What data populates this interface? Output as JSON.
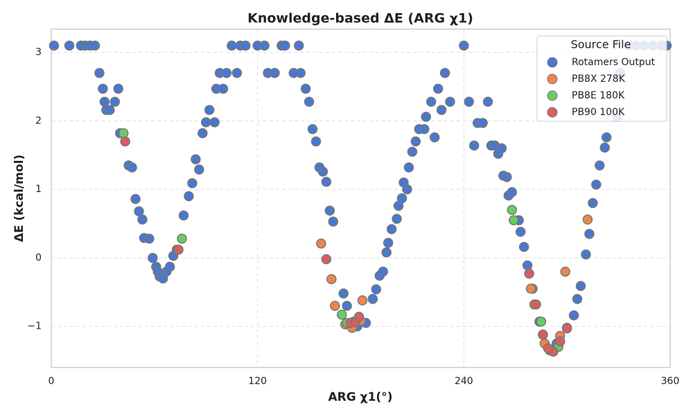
{
  "chart_data": {
    "type": "scatter",
    "title": "Knowledge-based ΔE (ARG χ1)",
    "x_label": "ARG χ1(°)",
    "y_label": "ΔE (kcal/mol)",
    "xlim": [
      0,
      360
    ],
    "ylim": [
      -1.6,
      3.34
    ],
    "xticks": [
      0,
      120,
      240,
      360
    ],
    "yticks": [
      {
        "value": -1,
        "label": "−1"
      },
      0,
      1,
      2,
      3
    ],
    "grid": true,
    "legend_title": "Source File",
    "legend_position": "upper right",
    "series": [
      {
        "name": "Rotamers Output",
        "color": "#4878d0",
        "x": [
          1.6,
          10.5,
          17.3,
          19.8,
          22.6,
          25.4,
          28,
          30,
          31,
          32,
          34,
          37,
          39,
          40,
          45,
          47,
          49,
          51,
          53,
          54,
          57,
          59,
          61,
          62,
          63,
          65,
          67,
          69,
          71,
          73,
          77,
          80,
          82,
          84,
          86,
          88,
          90,
          92,
          95,
          96,
          98,
          100,
          102,
          108,
          105,
          110,
          113,
          120,
          124,
          126,
          130,
          134,
          136,
          141,
          145,
          144,
          148,
          150,
          152,
          154,
          156,
          158,
          160,
          162,
          164,
          170,
          172,
          176,
          178,
          183,
          187,
          189,
          191,
          193,
          195,
          196,
          198,
          201,
          202,
          204,
          205,
          207,
          208,
          210,
          212,
          214,
          217,
          218,
          221,
          223,
          225,
          227,
          229,
          232,
          240,
          243,
          246,
          248,
          251,
          254,
          256,
          258,
          260,
          262,
          263,
          265,
          266,
          268,
          272,
          273,
          275,
          277,
          280,
          284,
          286,
          290,
          294,
          300,
          304,
          306,
          308,
          311,
          313,
          315,
          317,
          319,
          322,
          323,
          329,
          331,
          336,
          340,
          345,
          350,
          355,
          358
        ],
        "values": [
          3.1,
          3.1,
          3.1,
          3.1,
          3.1,
          3.1,
          2.7,
          2.47,
          2.28,
          2.16,
          2.16,
          2.28,
          2.47,
          1.82,
          1.35,
          1.32,
          0.86,
          0.68,
          0.56,
          0.29,
          0.28,
          0.0,
          -0.13,
          -0.2,
          -0.27,
          -0.3,
          -0.2,
          -0.13,
          0.03,
          0.12,
          0.62,
          0.9,
          1.09,
          1.44,
          1.29,
          1.82,
          1.98,
          2.16,
          1.98,
          2.47,
          2.7,
          2.47,
          2.7,
          2.7,
          3.1,
          3.1,
          3.1,
          3.1,
          3.1,
          2.7,
          2.7,
          3.1,
          3.1,
          2.7,
          2.7,
          3.1,
          2.47,
          2.28,
          1.88,
          1.7,
          1.32,
          1.26,
          1.11,
          0.69,
          0.53,
          -0.52,
          -0.7,
          -0.93,
          -1.0,
          -0.95,
          -0.6,
          -0.46,
          -0.26,
          -0.2,
          0.08,
          0.22,
          0.42,
          0.57,
          0.76,
          0.87,
          1.1,
          1.0,
          1.32,
          1.55,
          1.7,
          1.88,
          1.88,
          2.06,
          2.28,
          1.76,
          2.47,
          2.16,
          2.7,
          2.28,
          3.1,
          2.28,
          1.64,
          1.97,
          1.97,
          2.28,
          1.64,
          1.64,
          1.52,
          1.6,
          1.2,
          1.18,
          0.91,
          0.96,
          0.55,
          0.38,
          0.16,
          -0.11,
          -0.45,
          -0.93,
          -1.12,
          -1.35,
          -1.25,
          -1.02,
          -0.84,
          -0.6,
          -0.41,
          0.05,
          0.35,
          0.8,
          1.07,
          1.35,
          1.61,
          1.76,
          2.06,
          2.7,
          3.1,
          3.1,
          3.1,
          3.1,
          3.1,
          3.1
        ]
      },
      {
        "name": "PB8X 278K",
        "color": "#ee854a",
        "x": [
          157,
          163,
          165,
          171,
          175,
          180,
          181,
          279,
          281,
          287,
          296,
          299,
          312
        ],
        "values": [
          0.21,
          -0.31,
          -0.7,
          -0.97,
          -1.02,
          -0.92,
          -0.62,
          -0.45,
          -0.68,
          -1.25,
          -1.14,
          -0.2,
          0.56
        ]
      },
      {
        "name": "PB8E 180K",
        "color": "#6acc64",
        "x": [
          42,
          76,
          169,
          172,
          268,
          269,
          285,
          295
        ],
        "values": [
          1.82,
          0.28,
          -0.83,
          -0.95,
          0.7,
          0.55,
          -0.93,
          -1.3
        ]
      },
      {
        "name": "PB90 100K",
        "color": "#d65f5f",
        "x": [
          43,
          74,
          160,
          174,
          177,
          179,
          278,
          282,
          286,
          292,
          296,
          300,
          289
        ],
        "values": [
          1.7,
          0.12,
          -0.02,
          -0.95,
          -0.94,
          -0.86,
          -0.23,
          -0.68,
          -1.12,
          -1.37,
          -1.22,
          -1.03,
          -1.32
        ]
      }
    ]
  }
}
